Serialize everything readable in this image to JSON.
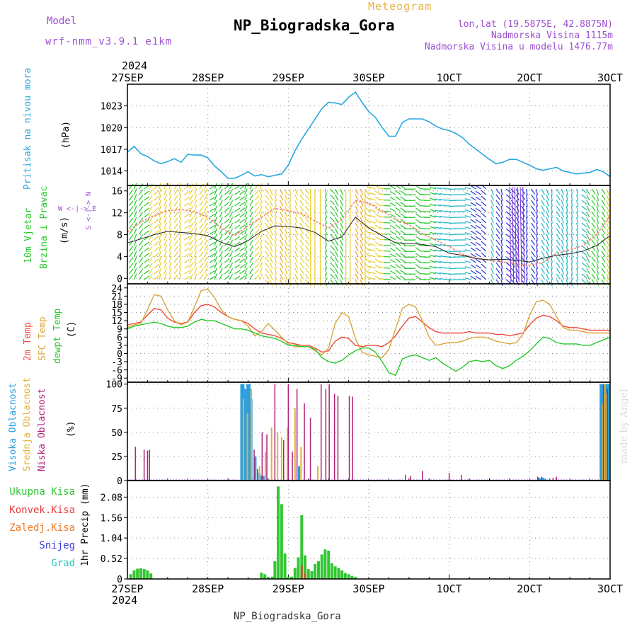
{
  "header": {
    "model_label": "Model",
    "model_value": "wrf-nmm_v3.9.1 e1km",
    "kind": "Meteogram",
    "station": "NP_Biogradska_Gora",
    "lonlat": "lon,lat (19.5875E, 42.8875N)",
    "elevation": "Nadmorska Visina 1115m",
    "model_elevation": "Nadmorska Visina u modelu 1476.77m",
    "footer_station": "NP_Biogradska_Gora",
    "credit": "made by Angel"
  },
  "time_axis": {
    "year": "2024",
    "labels": [
      "27SEP",
      "28SEP",
      "29SEP",
      "30SEP",
      "1OCT",
      "2OCT",
      "3OCT"
    ],
    "hours_total": 72
  },
  "colors": {
    "pressure": "#29a9e0",
    "wind_blue": "#2d36d6",
    "wind_cyan": "#1fb8c8",
    "wind_green": "#27c92a",
    "wind_yellow": "#e6cf2e",
    "wind_orange": "#f0a020",
    "wind_red": "#e8402a",
    "wind_magenta": "#e0208a",
    "wind_purple": "#7a2fd0",
    "t2m": "#ef4a3a",
    "tsfc": "#d9a53a",
    "dewpt": "#25c92a",
    "cloud_high": "#2a9fe0",
    "cloud_mid": "#e2b231",
    "cloud_low": "#b0207a",
    "precip_total": "#33c633",
    "precip_conv": "#e83a3a",
    "precip_frozen": "#f07a2a",
    "snow": "#3a3ad8",
    "graupel": "#29c9c0",
    "title_purple": "#9b4fcf",
    "title_orange": "#e8b24a"
  },
  "chart_data": [
    {
      "type": "line",
      "panel": "pressure",
      "ylabel": [
        "Pritisak na nivou mora",
        "(hPa)"
      ],
      "ylim": [
        1012,
        1026
      ],
      "yticks": [
        1014,
        1017,
        1020,
        1023
      ],
      "x": [
        0,
        1,
        2,
        3,
        4,
        5,
        6,
        7,
        8,
        9,
        10,
        11,
        12,
        13,
        14,
        15,
        16,
        17,
        18,
        19,
        20,
        21,
        22,
        23,
        24,
        25,
        26,
        27,
        28,
        29,
        30,
        31,
        32,
        33,
        34,
        35,
        36,
        37,
        38,
        39,
        40,
        41,
        42,
        43,
        44,
        45,
        46,
        47,
        48,
        49,
        50,
        51,
        52,
        53,
        54,
        55,
        56,
        57,
        58,
        59,
        60,
        61,
        62,
        63,
        64,
        65,
        66,
        67,
        68,
        69,
        70,
        71,
        72
      ],
      "series": [
        {
          "values": [
            1016.6,
            1017.4,
            1016.4,
            1016.0,
            1015.4,
            1015.0,
            1015.3,
            1015.7,
            1015.2,
            1016.3,
            1016.2,
            1016.2,
            1015.8,
            1014.7,
            1013.9,
            1013.0,
            1013.0,
            1013.4,
            1013.9,
            1013.3,
            1013.5,
            1013.2,
            1013.4,
            1013.6,
            1014.8,
            1016.8,
            1018.4,
            1019.8,
            1021.2,
            1022.6,
            1023.5,
            1023.4,
            1023.2,
            1024.2,
            1024.9,
            1023.5,
            1022.2,
            1021.4,
            1020.0,
            1018.8,
            1018.8,
            1020.7,
            1021.2,
            1021.2,
            1021.2,
            1020.8,
            1020.2,
            1019.8,
            1019.6,
            1019.2,
            1018.6,
            1017.7,
            1017.0,
            1016.3,
            1015.6,
            1015.0,
            1015.2,
            1015.6,
            1015.6,
            1015.2,
            1014.8,
            1014.3,
            1014.1,
            1014.3,
            1014.5,
            1014.0,
            1013.8,
            1013.6,
            1013.7,
            1013.8,
            1014.2,
            1013.9,
            1013.2
          ]
        }
      ]
    },
    {
      "type": "line",
      "panel": "wind",
      "ylabel": [
        "10m Vjetar",
        "Brzina i Pravac",
        "(m/s)"
      ],
      "ylim": [
        -1,
        17
      ],
      "yticks": [
        0,
        4,
        8,
        12,
        16
      ],
      "compass": "W <-|-> E",
      "compass_side": "S <-|-> N",
      "x": [
        0,
        2,
        4,
        6,
        8,
        10,
        12,
        14,
        16,
        18,
        20,
        22,
        24,
        26,
        28,
        30,
        32,
        34,
        36,
        38,
        40,
        42,
        44,
        46,
        48,
        50,
        52,
        54,
        56,
        58,
        60,
        62,
        64,
        66,
        68,
        70,
        72
      ],
      "series": [
        {
          "name": "speed",
          "values": [
            6.5,
            7.2,
            8.0,
            8.6,
            8.4,
            8.2,
            7.8,
            6.6,
            5.8,
            6.9,
            8.6,
            9.6,
            9.5,
            9.2,
            8.4,
            6.8,
            7.6,
            11.2,
            9.2,
            7.8,
            6.5,
            6.4,
            6.2,
            5.8,
            4.6,
            4.2,
            3.6,
            3.4,
            3.5,
            3.3,
            3.0,
            3.7,
            4.2,
            4.5,
            5.0,
            6.0,
            7.8
          ]
        },
        {
          "name": "gust",
          "values": [
            8.5,
            10.3,
            11.5,
            12.4,
            12.6,
            12.2,
            11.2,
            9.2,
            7.8,
            9.6,
            11.2,
            12.8,
            12.4,
            11.8,
            10.5,
            9.2,
            10.8,
            14.2,
            13.8,
            12.4,
            10.8,
            9.8,
            8.2,
            7.0,
            5.8,
            4.4,
            3.7,
            3.3,
            3.0,
            2.6,
            2.4,
            2.9,
            4.6,
            5.2,
            6.0,
            8.0,
            11.5
          ]
        }
      ]
    },
    {
      "type": "line",
      "panel": "temperature",
      "ylabel": [
        "2m Temp",
        "SFC Temp",
        "dewpt Temp",
        "(C)"
      ],
      "ylim": [
        -10.5,
        25.5
      ],
      "yticks": [
        -9,
        -6,
        -3,
        0,
        3,
        6,
        9,
        12,
        15,
        18,
        21,
        24
      ],
      "x": [
        0,
        1,
        2,
        3,
        4,
        5,
        6,
        7,
        8,
        9,
        10,
        11,
        12,
        13,
        14,
        15,
        16,
        17,
        18,
        19,
        20,
        21,
        22,
        23,
        24,
        25,
        26,
        27,
        28,
        29,
        30,
        31,
        32,
        33,
        34,
        35,
        36,
        37,
        38,
        39,
        40,
        41,
        42,
        43,
        44,
        45,
        46,
        47,
        48,
        49,
        50,
        51,
        52,
        53,
        54,
        55,
        56,
        57,
        58,
        59,
        60,
        61,
        62,
        63,
        64,
        65,
        66,
        67,
        68,
        69,
        70,
        71,
        72
      ],
      "series": [
        {
          "name": "2m Temp",
          "values": [
            10.5,
            11.0,
            11.5,
            14.0,
            16.5,
            16.0,
            13.0,
            11.5,
            11.0,
            11.5,
            15.0,
            17.5,
            18.0,
            17.0,
            15.0,
            13.5,
            12.5,
            12.0,
            11.0,
            9.0,
            7.5,
            7.0,
            6.5,
            5.5,
            4.0,
            3.5,
            3.0,
            3.0,
            2.0,
            0.5,
            1.0,
            4.5,
            6.0,
            5.5,
            3.0,
            2.5,
            3.0,
            3.0,
            2.5,
            4.0,
            6.5,
            10.0,
            13.0,
            13.5,
            11.5,
            9.5,
            8.0,
            7.5,
            7.5,
            7.5,
            7.5,
            8.0,
            7.5,
            7.5,
            7.5,
            7.0,
            7.0,
            6.5,
            7.0,
            7.5,
            10.5,
            13.0,
            14.0,
            13.5,
            12.0,
            10.0,
            9.5,
            9.5,
            9.0,
            8.5,
            8.5,
            8.5,
            8.5
          ]
        },
        {
          "name": "SFC Temp",
          "values": [
            9.5,
            10.5,
            11.0,
            16.0,
            21.5,
            21.0,
            16.0,
            12.0,
            10.5,
            11.5,
            17.0,
            23.0,
            23.5,
            20.5,
            16.0,
            13.5,
            12.5,
            12.0,
            10.0,
            6.5,
            8.0,
            11.0,
            8.5,
            6.0,
            3.5,
            2.5,
            2.5,
            2.5,
            1.0,
            -0.5,
            2.0,
            11.0,
            15.0,
            13.5,
            5.5,
            0.5,
            -0.5,
            -1.0,
            -1.5,
            1.5,
            9.0,
            16.5,
            18.0,
            17.0,
            12.0,
            6.0,
            3.0,
            3.5,
            4.0,
            4.0,
            4.5,
            5.5,
            6.0,
            6.0,
            5.5,
            4.5,
            4.0,
            3.5,
            4.0,
            7.0,
            14.0,
            19.0,
            19.5,
            18.0,
            13.5,
            9.5,
            8.5,
            8.5,
            8.0,
            7.5,
            7.5,
            7.5,
            7.5
          ]
        },
        {
          "name": "dewpt Temp",
          "values": [
            9.0,
            10.0,
            10.5,
            11.0,
            11.5,
            11.0,
            10.0,
            9.5,
            9.5,
            10.0,
            11.5,
            12.5,
            12.0,
            12.0,
            11.0,
            10.0,
            9.0,
            9.0,
            8.5,
            7.5,
            6.5,
            6.0,
            5.5,
            4.5,
            3.0,
            3.0,
            2.5,
            2.5,
            1.5,
            -1.5,
            -3.0,
            -3.5,
            -2.5,
            -0.5,
            1.0,
            2.0,
            2.0,
            0.5,
            -3.0,
            -7.0,
            -8.0,
            -2.0,
            -1.0,
            -0.5,
            -1.5,
            -2.5,
            -1.5,
            -3.5,
            -5.0,
            -6.5,
            -5.0,
            -3.0,
            -2.5,
            -3.0,
            -2.5,
            -4.5,
            -5.5,
            -4.5,
            -2.5,
            -1.0,
            1.0,
            3.5,
            6.0,
            5.5,
            4.0,
            3.5,
            3.5,
            3.5,
            3.0,
            3.0,
            4.0,
            5.0,
            6.0
          ]
        }
      ]
    },
    {
      "type": "bar",
      "panel": "cloud",
      "ylabel": [
        "Visoka Oblacnost",
        "Srednja Oblacnost",
        "Niska Oblacnost",
        "(%)"
      ],
      "ylim": [
        0,
        102
      ],
      "yticks": [
        0,
        25,
        50,
        75,
        100
      ],
      "series": [
        {
          "name": "Visoka Oblacnost",
          "x": [
            17.0,
            17.3,
            17.6,
            17.9,
            18.2,
            18.5,
            19.1,
            19.7,
            20.0,
            20.3,
            25.6,
            61.4,
            61.7,
            62.0,
            62.3,
            70.6,
            70.9,
            71.2,
            71.5,
            71.8
          ],
          "values": [
            100,
            100,
            95,
            100,
            100,
            85,
            25,
            8,
            5,
            5,
            15,
            3,
            2,
            3,
            2,
            100,
            100,
            100,
            100,
            100
          ]
        },
        {
          "name": "Srednja Oblacnost",
          "x": [
            17.3,
            17.9,
            18.5,
            19.7,
            20.6,
            21.5,
            22.4,
            23.0,
            23.9,
            25.0,
            25.9,
            28.4,
            70.9,
            71.2,
            71.5
          ],
          "values": [
            85,
            70,
            95,
            15,
            30,
            55,
            50,
            45,
            55,
            75,
            35,
            15,
            80,
            100,
            90
          ]
        },
        {
          "name": "Niska Oblacnost",
          "x": [
            1.2,
            2.5,
            3.0,
            3.3,
            18.9,
            19.4,
            20.1,
            20.8,
            22.0,
            23.3,
            24.0,
            24.6,
            25.3,
            26.4,
            27.3,
            28.9,
            29.6,
            30.1,
            30.9,
            31.4,
            33.1,
            33.6,
            41.5,
            42.2,
            44.0,
            48.0,
            49.8,
            61.2,
            61.8,
            63.5,
            64.0,
            71.0,
            71.6
          ],
          "values": [
            35,
            32,
            31,
            32,
            32,
            12,
            50,
            48,
            100,
            42,
            100,
            30,
            95,
            80,
            65,
            100,
            95,
            100,
            90,
            88,
            88,
            87,
            6,
            5,
            10,
            8,
            6,
            4,
            4,
            3,
            4,
            100,
            95
          ]
        }
      ]
    },
    {
      "type": "bar",
      "panel": "precip",
      "ylabel": [
        "1hr Precip (mm)"
      ],
      "legend": [
        "Ukupna Kisa",
        "Konvek.Kisa",
        "Zaledj.Kisa",
        "Snijeg",
        "Grad"
      ],
      "ylim": [
        0,
        2.5
      ],
      "yticks": [
        0,
        0.52,
        1.04,
        1.56,
        2.08
      ],
      "series": [
        {
          "name": "Ukupna Kisa",
          "x": [
            0.5,
            1.0,
            1.5,
            2.0,
            2.5,
            3.0,
            3.5,
            20.0,
            20.5,
            21.0,
            21.6,
            22.0,
            22.5,
            23.0,
            23.5,
            24.0,
            24.5,
            25.0,
            25.5,
            26.0,
            26.5,
            27.0,
            27.5,
            28.0,
            28.5,
            29.0,
            29.5,
            30.0,
            30.5,
            31.0,
            31.5,
            32.0,
            32.5,
            33.0,
            33.5,
            34.0
          ],
          "values": [
            0.12,
            0.22,
            0.26,
            0.27,
            0.25,
            0.22,
            0.14,
            0.16,
            0.12,
            0.05,
            0.06,
            0.45,
            2.35,
            1.9,
            0.65,
            0.05,
            0.06,
            0.28,
            0.55,
            1.62,
            0.6,
            0.25,
            0.2,
            0.38,
            0.45,
            0.62,
            0.75,
            0.72,
            0.4,
            0.32,
            0.28,
            0.22,
            0.15,
            0.12,
            0.08,
            0.05
          ]
        },
        {
          "name": "Konvek.Kisa",
          "x": [
            26.0,
            26.5
          ],
          "values": [
            0.35,
            0.15
          ]
        }
      ]
    }
  ]
}
